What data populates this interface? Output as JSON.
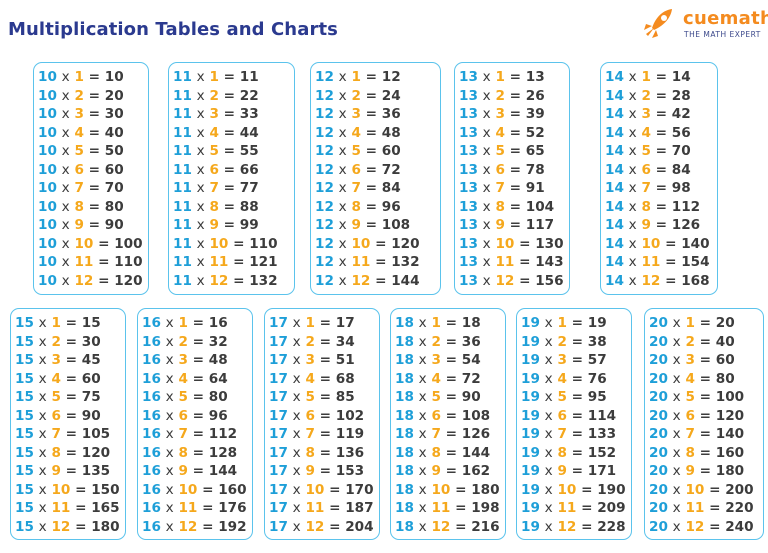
{
  "header": {
    "title": "Multiplication Tables and Charts",
    "brand_name": "cuemath",
    "brand_tagline": "THE MATH EXPERT"
  },
  "colors": {
    "table_number": "#1e9fd8",
    "multiplier": "#f5a81c",
    "product": "#3c3c3c",
    "box_border": "#5bc3ec",
    "title": "#2b3a8f",
    "brand": "#f48b1f"
  },
  "tables": [
    {
      "n": "10",
      "rows": [
        {
          "a": "10",
          "op": "x",
          "b": "1",
          "eq": "=",
          "p": "10"
        },
        {
          "a": "10",
          "op": "x",
          "b": "2",
          "eq": "=",
          "p": "20"
        },
        {
          "a": "10",
          "op": "x",
          "b": "3",
          "eq": "=",
          "p": "30"
        },
        {
          "a": "10",
          "op": "x",
          "b": "4",
          "eq": "=",
          "p": "40"
        },
        {
          "a": "10",
          "op": "x",
          "b": "5",
          "eq": "=",
          "p": "50"
        },
        {
          "a": "10",
          "op": "x",
          "b": "6",
          "eq": "=",
          "p": "60"
        },
        {
          "a": "10",
          "op": "x",
          "b": "7",
          "eq": "=",
          "p": "70"
        },
        {
          "a": "10",
          "op": "x",
          "b": "8",
          "eq": "=",
          "p": "80"
        },
        {
          "a": "10",
          "op": "x",
          "b": "9",
          "eq": "=",
          "p": "90"
        },
        {
          "a": "10",
          "op": "x",
          "b": "10",
          "eq": "=",
          "p": "100"
        },
        {
          "a": "10",
          "op": "x",
          "b": "11",
          "eq": "=",
          "p": "110"
        },
        {
          "a": "10",
          "op": "x",
          "b": "12",
          "eq": "=",
          "p": "120"
        }
      ]
    },
    {
      "n": "11",
      "rows": [
        {
          "a": "11",
          "op": "x",
          "b": "1",
          "eq": "=",
          "p": "11"
        },
        {
          "a": "11",
          "op": "x",
          "b": "2",
          "eq": "=",
          "p": "22"
        },
        {
          "a": "11",
          "op": "x",
          "b": "3",
          "eq": "=",
          "p": "33"
        },
        {
          "a": "11",
          "op": "x",
          "b": "4",
          "eq": "=",
          "p": "44"
        },
        {
          "a": "11",
          "op": "x",
          "b": "5",
          "eq": "=",
          "p": "55"
        },
        {
          "a": "11",
          "op": "x",
          "b": "6",
          "eq": "=",
          "p": "66"
        },
        {
          "a": "11",
          "op": "x",
          "b": "7",
          "eq": "=",
          "p": "77"
        },
        {
          "a": "11",
          "op": "x",
          "b": "8",
          "eq": "=",
          "p": "88"
        },
        {
          "a": "11",
          "op": "x",
          "b": "9",
          "eq": "=",
          "p": "99"
        },
        {
          "a": "11",
          "op": "x",
          "b": "10",
          "eq": "=",
          "p": "110"
        },
        {
          "a": "11",
          "op": "x",
          "b": "11",
          "eq": "=",
          "p": "121"
        },
        {
          "a": "11",
          "op": "x",
          "b": "12",
          "eq": "=",
          "p": "132"
        }
      ]
    },
    {
      "n": "12",
      "rows": [
        {
          "a": "12",
          "op": "x",
          "b": "1",
          "eq": "=",
          "p": "12"
        },
        {
          "a": "12",
          "op": "x",
          "b": "2",
          "eq": "=",
          "p": "24"
        },
        {
          "a": "12",
          "op": "x",
          "b": "3",
          "eq": "=",
          "p": "36"
        },
        {
          "a": "12",
          "op": "x",
          "b": "4",
          "eq": "=",
          "p": "48"
        },
        {
          "a": "12",
          "op": "x",
          "b": "5",
          "eq": "=",
          "p": "60"
        },
        {
          "a": "12",
          "op": "x",
          "b": "6",
          "eq": "=",
          "p": "72"
        },
        {
          "a": "12",
          "op": "x",
          "b": "7",
          "eq": "=",
          "p": "84"
        },
        {
          "a": "12",
          "op": "x",
          "b": "8",
          "eq": "=",
          "p": "96"
        },
        {
          "a": "12",
          "op": "x",
          "b": "9",
          "eq": "=",
          "p": "108"
        },
        {
          "a": "12",
          "op": "x",
          "b": "10",
          "eq": "=",
          "p": "120"
        },
        {
          "a": "12",
          "op": "x",
          "b": "11",
          "eq": "=",
          "p": "132"
        },
        {
          "a": "12",
          "op": "x",
          "b": "12",
          "eq": "=",
          "p": "144"
        }
      ]
    },
    {
      "n": "13",
      "rows": [
        {
          "a": "13",
          "op": "x",
          "b": "1",
          "eq": "=",
          "p": "13"
        },
        {
          "a": "13",
          "op": "x",
          "b": "2",
          "eq": "=",
          "p": "26"
        },
        {
          "a": "13",
          "op": "x",
          "b": "3",
          "eq": "=",
          "p": "39"
        },
        {
          "a": "13",
          "op": "x",
          "b": "4",
          "eq": "=",
          "p": "52"
        },
        {
          "a": "13",
          "op": "x",
          "b": "5",
          "eq": "=",
          "p": "65"
        },
        {
          "a": "13",
          "op": "x",
          "b": "6",
          "eq": "=",
          "p": "78"
        },
        {
          "a": "13",
          "op": "x",
          "b": "7",
          "eq": "=",
          "p": "91"
        },
        {
          "a": "13",
          "op": "x",
          "b": "8",
          "eq": "=",
          "p": "104"
        },
        {
          "a": "13",
          "op": "x",
          "b": "9",
          "eq": "=",
          "p": "117"
        },
        {
          "a": "13",
          "op": "x",
          "b": "10",
          "eq": "=",
          "p": "130"
        },
        {
          "a": "13",
          "op": "x",
          "b": "11",
          "eq": "=",
          "p": "143"
        },
        {
          "a": "13",
          "op": "x",
          "b": "12",
          "eq": "=",
          "p": "156"
        }
      ]
    },
    {
      "n": "14",
      "rows": [
        {
          "a": "14",
          "op": "x",
          "b": "1",
          "eq": "=",
          "p": "14"
        },
        {
          "a": "14",
          "op": "x",
          "b": "2",
          "eq": "=",
          "p": "28"
        },
        {
          "a": "14",
          "op": "x",
          "b": "3",
          "eq": "=",
          "p": "42"
        },
        {
          "a": "14",
          "op": "x",
          "b": "4",
          "eq": "=",
          "p": "56"
        },
        {
          "a": "14",
          "op": "x",
          "b": "5",
          "eq": "=",
          "p": "70"
        },
        {
          "a": "14",
          "op": "x",
          "b": "6",
          "eq": "=",
          "p": "84"
        },
        {
          "a": "14",
          "op": "x",
          "b": "7",
          "eq": "=",
          "p": "98"
        },
        {
          "a": "14",
          "op": "x",
          "b": "8",
          "eq": "=",
          "p": "112"
        },
        {
          "a": "14",
          "op": "x",
          "b": "9",
          "eq": "=",
          "p": "126"
        },
        {
          "a": "14",
          "op": "x",
          "b": "10",
          "eq": "=",
          "p": "140"
        },
        {
          "a": "14",
          "op": "x",
          "b": "11",
          "eq": "=",
          "p": "154"
        },
        {
          "a": "14",
          "op": "x",
          "b": "12",
          "eq": "=",
          "p": "168"
        }
      ]
    },
    {
      "n": "15",
      "rows": [
        {
          "a": "15",
          "op": "x",
          "b": "1",
          "eq": "=",
          "p": "15"
        },
        {
          "a": "15",
          "op": "x",
          "b": "2",
          "eq": "=",
          "p": "30"
        },
        {
          "a": "15",
          "op": "x",
          "b": "3",
          "eq": "=",
          "p": "45"
        },
        {
          "a": "15",
          "op": "x",
          "b": "4",
          "eq": "=",
          "p": "60"
        },
        {
          "a": "15",
          "op": "x",
          "b": "5",
          "eq": "=",
          "p": "75"
        },
        {
          "a": "15",
          "op": "x",
          "b": "6",
          "eq": "=",
          "p": "90"
        },
        {
          "a": "15",
          "op": "x",
          "b": "7",
          "eq": "=",
          "p": "105"
        },
        {
          "a": "15",
          "op": "x",
          "b": "8",
          "eq": "=",
          "p": "120"
        },
        {
          "a": "15",
          "op": "x",
          "b": "9",
          "eq": "=",
          "p": "135"
        },
        {
          "a": "15",
          "op": "x",
          "b": "10",
          "eq": "=",
          "p": "150"
        },
        {
          "a": "15",
          "op": "x",
          "b": "11",
          "eq": "=",
          "p": "165"
        },
        {
          "a": "15",
          "op": "x",
          "b": "12",
          "eq": "=",
          "p": "180"
        }
      ]
    },
    {
      "n": "16",
      "rows": [
        {
          "a": "16",
          "op": "x",
          "b": "1",
          "eq": "=",
          "p": "16"
        },
        {
          "a": "16",
          "op": "x",
          "b": "2",
          "eq": "=",
          "p": "32"
        },
        {
          "a": "16",
          "op": "x",
          "b": "3",
          "eq": "=",
          "p": "48"
        },
        {
          "a": "16",
          "op": "x",
          "b": "4",
          "eq": "=",
          "p": "64"
        },
        {
          "a": "16",
          "op": "x",
          "b": "5",
          "eq": "=",
          "p": "80"
        },
        {
          "a": "16",
          "op": "x",
          "b": "6",
          "eq": "=",
          "p": "96"
        },
        {
          "a": "16",
          "op": "x",
          "b": "7",
          "eq": "=",
          "p": "112"
        },
        {
          "a": "16",
          "op": "x",
          "b": "8",
          "eq": "=",
          "p": "128"
        },
        {
          "a": "16",
          "op": "x",
          "b": "9",
          "eq": "=",
          "p": "144"
        },
        {
          "a": "16",
          "op": "x",
          "b": "10",
          "eq": "=",
          "p": "160"
        },
        {
          "a": "16",
          "op": "x",
          "b": "11",
          "eq": "=",
          "p": "176"
        },
        {
          "a": "16",
          "op": "x",
          "b": "12",
          "eq": "=",
          "p": "192"
        }
      ]
    },
    {
      "n": "17",
      "rows": [
        {
          "a": "17",
          "op": "x",
          "b": "1",
          "eq": "=",
          "p": "17"
        },
        {
          "a": "17",
          "op": "x",
          "b": "2",
          "eq": "=",
          "p": "34"
        },
        {
          "a": "17",
          "op": "x",
          "b": "3",
          "eq": "=",
          "p": "51"
        },
        {
          "a": "17",
          "op": "x",
          "b": "4",
          "eq": "=",
          "p": "68"
        },
        {
          "a": "17",
          "op": "x",
          "b": "5",
          "eq": "=",
          "p": "85"
        },
        {
          "a": "17",
          "op": "x",
          "b": "6",
          "eq": "=",
          "p": "102"
        },
        {
          "a": "17",
          "op": "x",
          "b": "7",
          "eq": "=",
          "p": "119"
        },
        {
          "a": "17",
          "op": "x",
          "b": "8",
          "eq": "=",
          "p": "136"
        },
        {
          "a": "17",
          "op": "x",
          "b": "9",
          "eq": "=",
          "p": "153"
        },
        {
          "a": "17",
          "op": "x",
          "b": "10",
          "eq": "=",
          "p": "170"
        },
        {
          "a": "17",
          "op": "x",
          "b": "11",
          "eq": "=",
          "p": "187"
        },
        {
          "a": "17",
          "op": "x",
          "b": "12",
          "eq": "=",
          "p": "204"
        }
      ]
    },
    {
      "n": "18",
      "rows": [
        {
          "a": "18",
          "op": "x",
          "b": "1",
          "eq": "=",
          "p": "18"
        },
        {
          "a": "18",
          "op": "x",
          "b": "2",
          "eq": "=",
          "p": "36"
        },
        {
          "a": "18",
          "op": "x",
          "b": "3",
          "eq": "=",
          "p": "54"
        },
        {
          "a": "18",
          "op": "x",
          "b": "4",
          "eq": "=",
          "p": "72"
        },
        {
          "a": "18",
          "op": "x",
          "b": "5",
          "eq": "=",
          "p": "90"
        },
        {
          "a": "18",
          "op": "x",
          "b": "6",
          "eq": "=",
          "p": "108"
        },
        {
          "a": "18",
          "op": "x",
          "b": "7",
          "eq": "=",
          "p": "126"
        },
        {
          "a": "18",
          "op": "x",
          "b": "8",
          "eq": "=",
          "p": "144"
        },
        {
          "a": "18",
          "op": "x",
          "b": "9",
          "eq": "=",
          "p": "162"
        },
        {
          "a": "18",
          "op": "x",
          "b": "10",
          "eq": "=",
          "p": "180"
        },
        {
          "a": "18",
          "op": "x",
          "b": "11",
          "eq": "=",
          "p": "198"
        },
        {
          "a": "18",
          "op": "x",
          "b": "12",
          "eq": "=",
          "p": "216"
        }
      ]
    },
    {
      "n": "19",
      "rows": [
        {
          "a": "19",
          "op": "x",
          "b": "1",
          "eq": "=",
          "p": "19"
        },
        {
          "a": "19",
          "op": "x",
          "b": "2",
          "eq": "=",
          "p": "38"
        },
        {
          "a": "19",
          "op": "x",
          "b": "3",
          "eq": "=",
          "p": "57"
        },
        {
          "a": "19",
          "op": "x",
          "b": "4",
          "eq": "=",
          "p": "76"
        },
        {
          "a": "19",
          "op": "x",
          "b": "5",
          "eq": "=",
          "p": "95"
        },
        {
          "a": "19",
          "op": "x",
          "b": "6",
          "eq": "=",
          "p": "114"
        },
        {
          "a": "19",
          "op": "x",
          "b": "7",
          "eq": "=",
          "p": "133"
        },
        {
          "a": "19",
          "op": "x",
          "b": "8",
          "eq": "=",
          "p": "152"
        },
        {
          "a": "19",
          "op": "x",
          "b": "9",
          "eq": "=",
          "p": "171"
        },
        {
          "a": "19",
          "op": "x",
          "b": "10",
          "eq": "=",
          "p": "190"
        },
        {
          "a": "19",
          "op": "x",
          "b": "11",
          "eq": "=",
          "p": "209"
        },
        {
          "a": "19",
          "op": "x",
          "b": "12",
          "eq": "=",
          "p": "228"
        }
      ]
    },
    {
      "n": "20",
      "rows": [
        {
          "a": "20",
          "op": "x",
          "b": "1",
          "eq": "=",
          "p": "20"
        },
        {
          "a": "20",
          "op": "x",
          "b": "2",
          "eq": "=",
          "p": "40"
        },
        {
          "a": "20",
          "op": "x",
          "b": "3",
          "eq": "=",
          "p": "60"
        },
        {
          "a": "20",
          "op": "x",
          "b": "4",
          "eq": "=",
          "p": "80"
        },
        {
          "a": "20",
          "op": "x",
          "b": "5",
          "eq": "=",
          "p": "100"
        },
        {
          "a": "20",
          "op": "x",
          "b": "6",
          "eq": "=",
          "p": "120"
        },
        {
          "a": "20",
          "op": "x",
          "b": "7",
          "eq": "=",
          "p": "140"
        },
        {
          "a": "20",
          "op": "x",
          "b": "8",
          "eq": "=",
          "p": "160"
        },
        {
          "a": "20",
          "op": "x",
          "b": "9",
          "eq": "=",
          "p": "180"
        },
        {
          "a": "20",
          "op": "x",
          "b": "10",
          "eq": "=",
          "p": "200"
        },
        {
          "a": "20",
          "op": "x",
          "b": "11",
          "eq": "=",
          "p": "220"
        },
        {
          "a": "20",
          "op": "x",
          "b": "12",
          "eq": "=",
          "p": "240"
        }
      ]
    }
  ]
}
